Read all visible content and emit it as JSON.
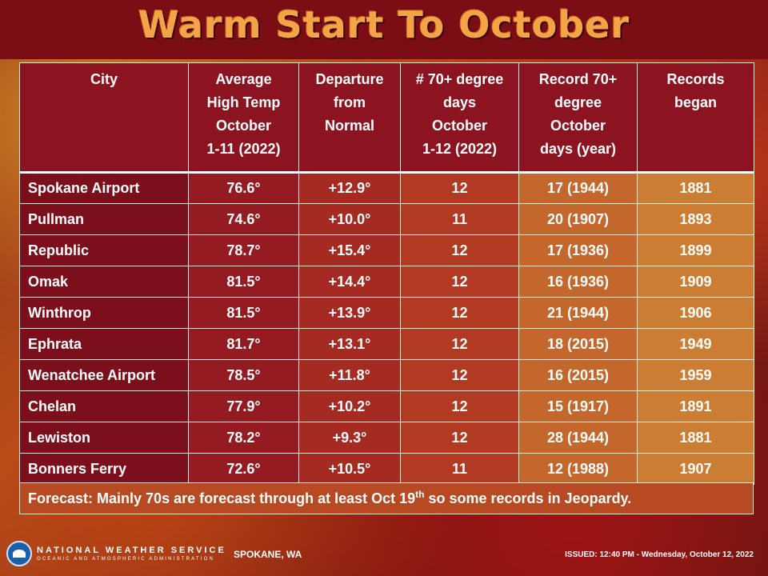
{
  "title": "Warm Start To October",
  "table": {
    "headers": [
      "City",
      "Average\nHigh Temp\nOctober\n1-11 (2022)",
      "Departure\nfrom\nNormal",
      "# 70+ degree\ndays\nOctober\n1-12 (2022)",
      "Record 70+\ndegree\nOctober\ndays (year)",
      "Records\nbegan"
    ],
    "rows": [
      {
        "city": "Spokane Airport",
        "avg": "76.6°",
        "dep": "+12.9°",
        "days": "12",
        "record": "17 (1944)",
        "began": "1881"
      },
      {
        "city": "Pullman",
        "avg": "74.6°",
        "dep": "+10.0°",
        "days": "11",
        "record": "20 (1907)",
        "began": "1893"
      },
      {
        "city": "Republic",
        "avg": "78.7°",
        "dep": "+15.4°",
        "days": "12",
        "record": "17 (1936)",
        "began": "1899"
      },
      {
        "city": "Omak",
        "avg": "81.5°",
        "dep": "+14.4°",
        "days": "12",
        "record": "16 (1936)",
        "began": "1909"
      },
      {
        "city": "Winthrop",
        "avg": "81.5°",
        "dep": "+13.9°",
        "days": "12",
        "record": "21 (1944)",
        "began": "1906"
      },
      {
        "city": "Ephrata",
        "avg": "81.7°",
        "dep": "+13.1°",
        "days": "12",
        "record": "18 (2015)",
        "began": "1949"
      },
      {
        "city": "Wenatchee Airport",
        "avg": "78.5°",
        "dep": "+11.8°",
        "days": "12",
        "record": "16 (2015)",
        "began": "1959"
      },
      {
        "city": "Chelan",
        "avg": "77.9°",
        "dep": "+10.2°",
        "days": "12",
        "record": "15 (1917)",
        "began": "1891"
      },
      {
        "city": "Lewiston",
        "avg": "78.2°",
        "dep": "+9.3°",
        "days": "12",
        "record": "28 (1944)",
        "began": "1881"
      },
      {
        "city": "Bonners Ferry",
        "avg": "72.6°",
        "dep": "+10.5°",
        "days": "11",
        "record": "12 (1988)",
        "began": "1907"
      }
    ]
  },
  "forecast": {
    "before": "Forecast: Mainly 70s are forecast through at least Oct 19",
    "sup": "th",
    "after": " so some records in Jeopardy."
  },
  "footer": {
    "agency": "NATIONAL WEATHER SERVICE",
    "agency_sub": "OCEANIC AND ATMOSPHERIC ADMINISTRATION",
    "office": "SPOKANE, WA",
    "issued": "ISSUED: 12:40 PM - Wednesday, October 12, 2022"
  },
  "colors": {
    "header_band": "#7a0e14",
    "title": "#f5a347",
    "header_cell": "#8c1420"
  }
}
